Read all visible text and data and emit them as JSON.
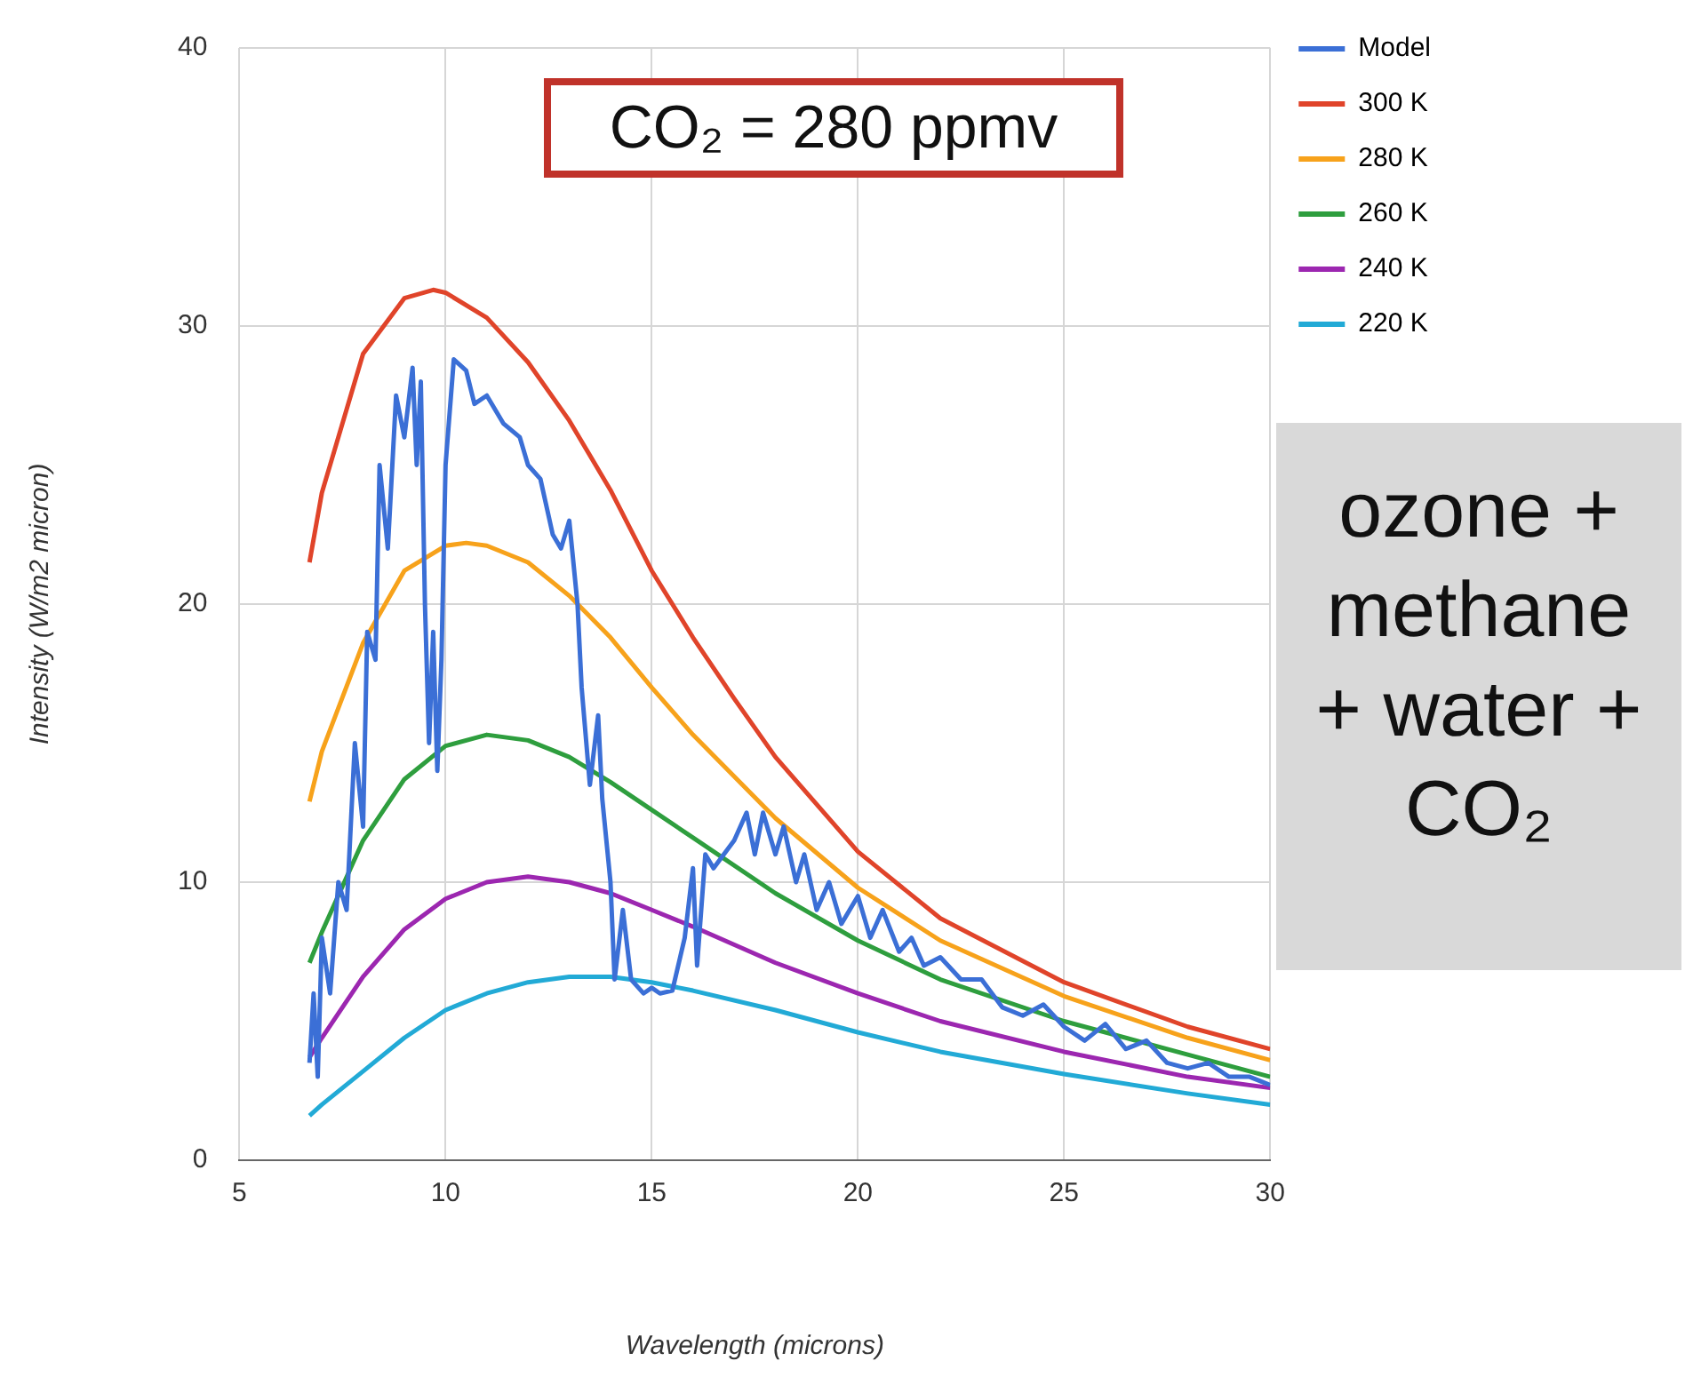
{
  "chart_data": {
    "type": "line",
    "xlabel": "Wavelength (microns)",
    "ylabel": "Intensity (W/m2 micron)",
    "xlim": [
      5,
      30
    ],
    "xticks": [
      5,
      10,
      15,
      20,
      25,
      30
    ],
    "ylim": [
      0,
      40
    ],
    "yticks": [
      0,
      10,
      20,
      30,
      40
    ],
    "grid": true,
    "legend": "top right",
    "marker": "none",
    "line_style": "solid",
    "annotations": [
      "CO₂ = 280 ppmv",
      "ozone + methane + water + CO₂"
    ],
    "series": [
      {
        "name": "Model",
        "color": "#3b6fd6",
        "x": [
          6.7,
          6.8,
          6.9,
          7.0,
          7.2,
          7.4,
          7.6,
          7.8,
          8.0,
          8.1,
          8.3,
          8.4,
          8.6,
          8.8,
          9.0,
          9.2,
          9.3,
          9.4,
          9.5,
          9.6,
          9.7,
          9.8,
          9.9,
          10.0,
          10.2,
          10.5,
          10.7,
          11,
          11.4,
          11.8,
          12,
          12.3,
          12.6,
          12.8,
          13,
          13.2,
          13.3,
          13.5,
          13.7,
          13.8,
          14,
          14.1,
          14.3,
          14.5,
          14.8,
          15.0,
          15.2,
          15.5,
          15.8,
          16.0,
          16.1,
          16.3,
          16.5,
          17,
          17.3,
          17.5,
          17.7,
          18,
          18.2,
          18.5,
          18.7,
          19,
          19.3,
          19.6,
          20,
          20.3,
          20.6,
          21,
          21.3,
          21.6,
          22,
          22.5,
          23,
          23.5,
          24,
          24.5,
          25,
          25.5,
          26,
          26.5,
          27,
          27.5,
          28,
          28.5,
          29,
          29.5,
          30
        ],
        "values": [
          3.5,
          6,
          3,
          8,
          6,
          10,
          9,
          15,
          12,
          19,
          18,
          25,
          22,
          27.5,
          26,
          28.5,
          25,
          28,
          20,
          15,
          19,
          14,
          18,
          25,
          28.8,
          28.4,
          27.2,
          27.5,
          26.5,
          26,
          25,
          24.5,
          22.5,
          22,
          23,
          20,
          17,
          13.5,
          16,
          13,
          10,
          6.5,
          9,
          6.5,
          6.0,
          6.2,
          6.0,
          6.1,
          8,
          10.5,
          7,
          11,
          10.5,
          11.5,
          12.5,
          11,
          12.5,
          11,
          12,
          10,
          11,
          9,
          10,
          8.5,
          9.5,
          8,
          9,
          7.5,
          8,
          7,
          7.3,
          6.5,
          6.5,
          5.5,
          5.2,
          5.6,
          4.8,
          4.3,
          4.9,
          4.0,
          4.3,
          3.5,
          3.3,
          3.5,
          3.0,
          3.0,
          2.7
        ]
      },
      {
        "name": "300 K",
        "color": "#e0442a",
        "x": [
          6.7,
          7,
          8,
          9,
          9.7,
          10,
          11,
          12,
          13,
          14,
          15,
          16,
          17,
          18,
          20,
          22,
          25,
          28,
          30
        ],
        "values": [
          21.5,
          24,
          29,
          31,
          31.3,
          31.2,
          30.3,
          28.7,
          26.6,
          24.1,
          21.2,
          18.8,
          16.6,
          14.5,
          11.1,
          8.7,
          6.4,
          4.8,
          4.0
        ]
      },
      {
        "name": "280 K",
        "color": "#f7a21b",
        "x": [
          6.7,
          7,
          8,
          9,
          10,
          10.5,
          11,
          12,
          13,
          14,
          15,
          16,
          18,
          20,
          22,
          25,
          28,
          30
        ],
        "values": [
          12.9,
          14.7,
          18.6,
          21.2,
          22.1,
          22.2,
          22.1,
          21.5,
          20.3,
          18.8,
          17.0,
          15.3,
          12.3,
          9.8,
          7.9,
          5.9,
          4.4,
          3.6
        ]
      },
      {
        "name": "260 K",
        "color": "#2e9e3e",
        "x": [
          6.7,
          7,
          8,
          9,
          10,
          11,
          12,
          13,
          14,
          15,
          16,
          18,
          20,
          22,
          25,
          28,
          30
        ],
        "values": [
          7.1,
          8.2,
          11.5,
          13.7,
          14.9,
          15.3,
          15.1,
          14.5,
          13.6,
          12.6,
          11.6,
          9.6,
          7.9,
          6.5,
          5.0,
          3.8,
          3.0
        ]
      },
      {
        "name": "240 K",
        "color": "#9c27b0",
        "x": [
          6.7,
          7,
          8,
          9,
          10,
          11,
          12,
          13,
          14,
          15,
          16,
          18,
          20,
          22,
          25,
          28,
          30
        ],
        "values": [
          3.7,
          4.4,
          6.6,
          8.3,
          9.4,
          10.0,
          10.2,
          10.0,
          9.6,
          9.0,
          8.4,
          7.1,
          6.0,
          5.0,
          3.9,
          3.0,
          2.6
        ]
      },
      {
        "name": "220 K",
        "color": "#22aad6",
        "x": [
          6.7,
          7,
          8,
          9,
          10,
          11,
          12,
          13,
          14,
          15,
          16,
          18,
          20,
          22,
          25,
          28,
          30
        ],
        "values": [
          1.6,
          2.0,
          3.2,
          4.4,
          5.4,
          6.0,
          6.4,
          6.6,
          6.6,
          6.4,
          6.1,
          5.4,
          4.6,
          3.9,
          3.1,
          2.4,
          2.0
        ]
      }
    ]
  }
}
